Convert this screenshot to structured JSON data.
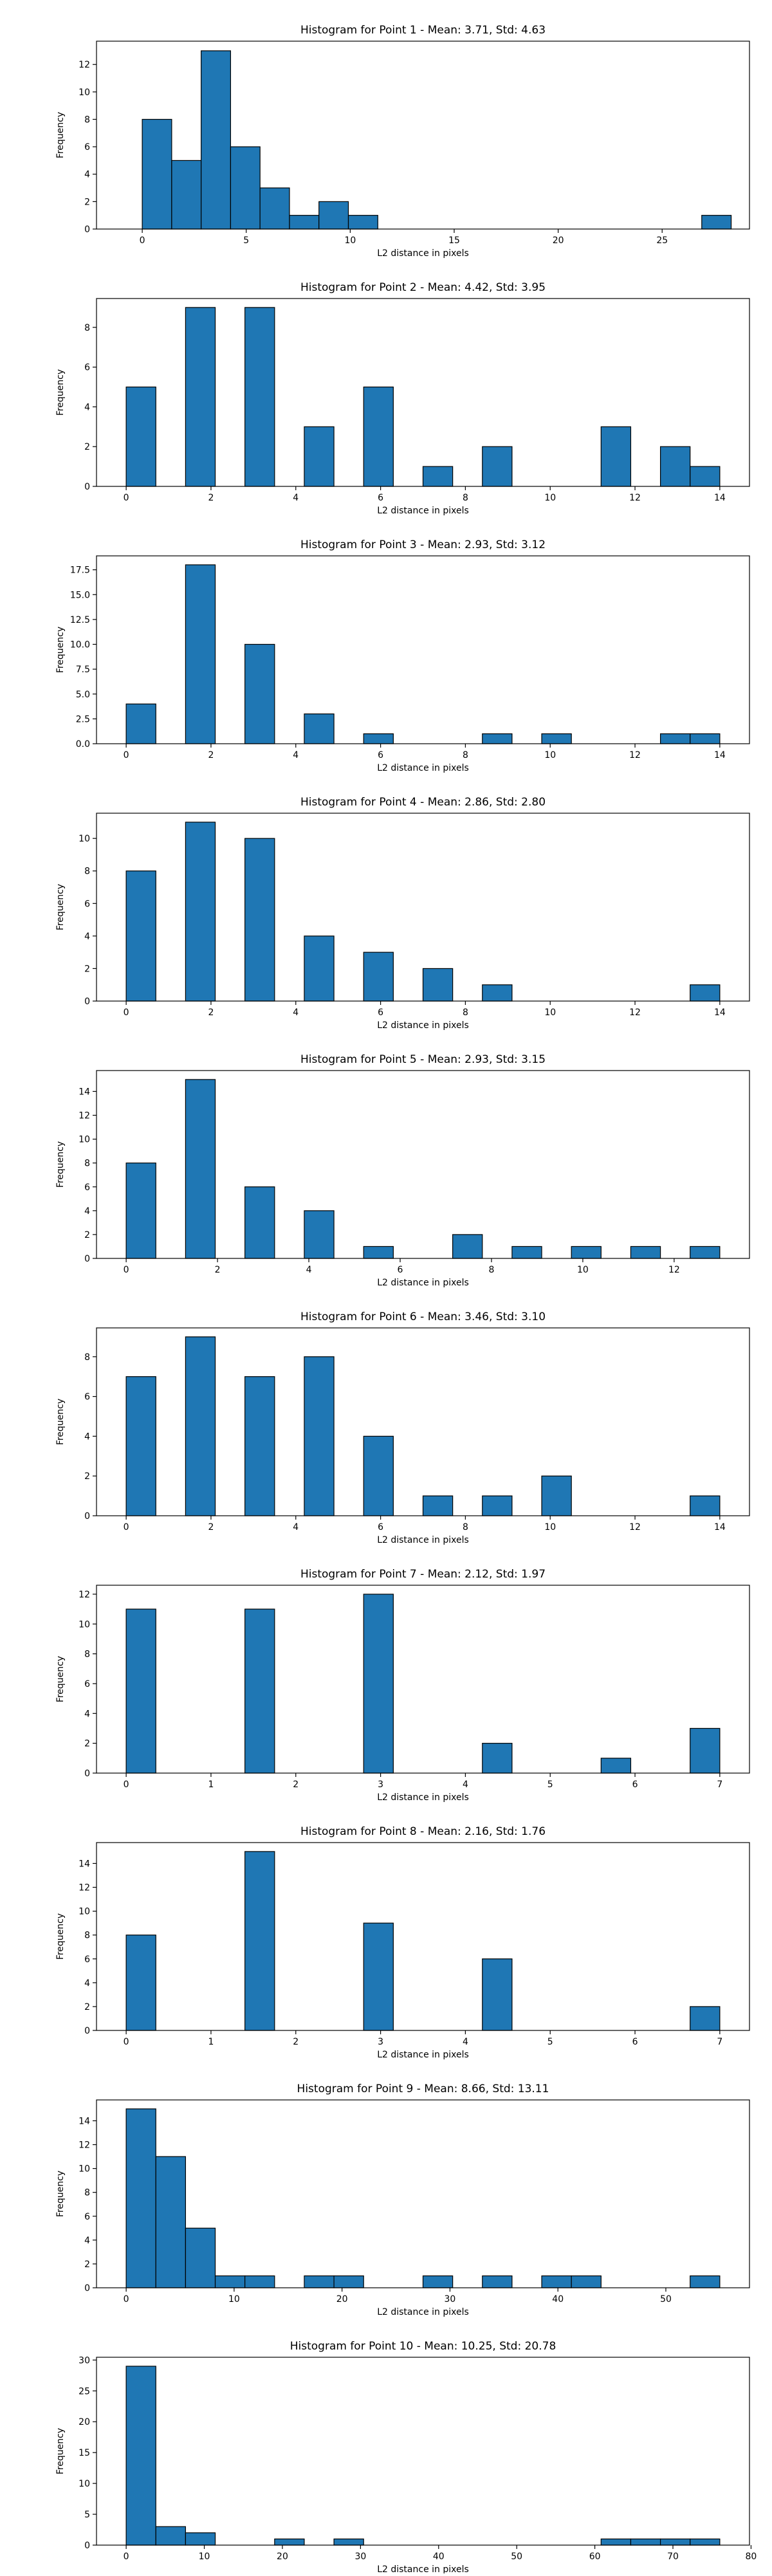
{
  "chart_data": [
    {
      "type": "bar",
      "title": "Histogram for Point 1 - Mean: 3.71, Std: 4.63",
      "xlabel": "L2 distance in pixels",
      "ylabel": "Frequency",
      "xlim": [
        -2.2,
        29.2
      ],
      "ylim": [
        0,
        13.7
      ],
      "xticks": [
        0,
        5,
        10,
        15,
        20,
        25
      ],
      "yticks": [
        0,
        2,
        4,
        6,
        8,
        10,
        12
      ],
      "bin_edges": [
        0,
        1.416,
        2.832,
        4.248,
        5.664,
        7.08,
        8.496,
        9.912,
        11.328,
        12.744,
        14.16,
        15.576,
        16.992,
        18.408,
        19.824,
        21.24,
        22.656,
        24.072,
        25.488,
        26.904,
        28.32
      ],
      "values": [
        8,
        5,
        13,
        6,
        3,
        1,
        2,
        1,
        0,
        0,
        0,
        0,
        0,
        0,
        0,
        0,
        0,
        0,
        0,
        1
      ],
      "color": "#1f77b4"
    },
    {
      "type": "bar",
      "title": "Histogram for Point 2 - Mean: 4.42, Std: 3.95",
      "xlabel": "L2 distance in pixels",
      "ylabel": "Frequency",
      "xlim": [
        -0.7,
        14.7
      ],
      "ylim": [
        0,
        9.45
      ],
      "xticks": [
        0,
        2,
        4,
        6,
        8,
        10,
        12,
        14
      ],
      "yticks": [
        0,
        2,
        4,
        6,
        8
      ],
      "bin_edges": [
        0,
        0.7,
        1.4,
        2.1,
        2.8,
        3.5,
        4.2,
        4.9,
        5.6,
        6.3,
        7.0,
        7.7,
        8.4,
        9.1,
        9.8,
        10.5,
        11.2,
        11.9,
        12.6,
        13.3,
        14.0
      ],
      "values": [
        5,
        0,
        9,
        0,
        9,
        0,
        3,
        0,
        5,
        0,
        1,
        0,
        2,
        0,
        0,
        0,
        3,
        0,
        2,
        1
      ],
      "color": "#1f77b4"
    },
    {
      "type": "bar",
      "title": "Histogram for Point 3 - Mean: 2.93, Std: 3.12",
      "xlabel": "L2 distance in pixels",
      "ylabel": "Frequency",
      "xlim": [
        -0.7,
        14.7
      ],
      "ylim": [
        0,
        18.9
      ],
      "xticks": [
        0,
        2,
        4,
        6,
        8,
        10,
        12,
        14
      ],
      "yticks": [
        0.0,
        2.5,
        5.0,
        7.5,
        10.0,
        12.5,
        15.0,
        17.5
      ],
      "ytick_labels": [
        "0.0",
        "2.5",
        "5.0",
        "7.5",
        "10.0",
        "12.5",
        "15.0",
        "17.5"
      ],
      "bin_edges": [
        0,
        0.7,
        1.4,
        2.1,
        2.8,
        3.5,
        4.2,
        4.9,
        5.6,
        6.3,
        7.0,
        7.7,
        8.4,
        9.1,
        9.8,
        10.5,
        11.2,
        11.9,
        12.6,
        13.3,
        14.0
      ],
      "values": [
        4,
        0,
        18,
        0,
        10,
        0,
        3,
        0,
        1,
        0,
        0,
        0,
        1,
        0,
        1,
        0,
        0,
        0,
        1,
        1
      ],
      "color": "#1f77b4"
    },
    {
      "type": "bar",
      "title": "Histogram for Point 4 - Mean: 2.86, Std: 2.80",
      "xlabel": "L2 distance in pixels",
      "ylabel": "Frequency",
      "xlim": [
        -0.7,
        14.7
      ],
      "ylim": [
        0,
        11.55
      ],
      "xticks": [
        0,
        2,
        4,
        6,
        8,
        10,
        12,
        14
      ],
      "yticks": [
        0,
        2,
        4,
        6,
        8,
        10
      ],
      "bin_edges": [
        0,
        0.7,
        1.4,
        2.1,
        2.8,
        3.5,
        4.2,
        4.9,
        5.6,
        6.3,
        7.0,
        7.7,
        8.4,
        9.1,
        9.8,
        10.5,
        11.2,
        11.9,
        12.6,
        13.3,
        14.0
      ],
      "values": [
        8,
        0,
        11,
        0,
        10,
        0,
        4,
        0,
        3,
        0,
        2,
        0,
        1,
        0,
        0,
        0,
        0,
        0,
        0,
        1
      ],
      "color": "#1f77b4"
    },
    {
      "type": "bar",
      "title": "Histogram for Point 5 - Mean: 2.93, Std: 3.15",
      "xlabel": "L2 distance in pixels",
      "ylabel": "Frequency",
      "xlim": [
        -0.65,
        13.65
      ],
      "ylim": [
        0,
        15.75
      ],
      "xticks": [
        0,
        2,
        4,
        6,
        8,
        10,
        12
      ],
      "yticks": [
        0,
        2,
        4,
        6,
        8,
        10,
        12,
        14
      ],
      "bin_edges": [
        0,
        0.65,
        1.3,
        1.95,
        2.6,
        3.25,
        3.9,
        4.55,
        5.2,
        5.85,
        6.5,
        7.15,
        7.8,
        8.45,
        9.1,
        9.75,
        10.4,
        11.05,
        11.7,
        12.35,
        13.0
      ],
      "values": [
        8,
        0,
        15,
        0,
        6,
        0,
        4,
        0,
        1,
        0,
        0,
        2,
        0,
        1,
        0,
        1,
        0,
        1,
        0,
        1
      ],
      "color": "#1f77b4"
    },
    {
      "type": "bar",
      "title": "Histogram for Point 6 - Mean: 3.46, Std: 3.10",
      "xlabel": "L2 distance in pixels",
      "ylabel": "Frequency",
      "xlim": [
        -0.7,
        14.7
      ],
      "ylim": [
        0,
        9.45
      ],
      "xticks": [
        0,
        2,
        4,
        6,
        8,
        10,
        12,
        14
      ],
      "yticks": [
        0,
        2,
        4,
        6,
        8
      ],
      "bin_edges": [
        0,
        0.7,
        1.4,
        2.1,
        2.8,
        3.5,
        4.2,
        4.9,
        5.6,
        6.3,
        7.0,
        7.7,
        8.4,
        9.1,
        9.8,
        10.5,
        11.2,
        11.9,
        12.6,
        13.3,
        14.0
      ],
      "values": [
        7,
        0,
        9,
        0,
        7,
        0,
        8,
        0,
        4,
        0,
        1,
        0,
        1,
        0,
        2,
        0,
        0,
        0,
        0,
        1
      ],
      "color": "#1f77b4"
    },
    {
      "type": "bar",
      "title": "Histogram for Point 7 - Mean: 2.12, Std: 1.97",
      "xlabel": "L2 distance in pixels",
      "ylabel": "Frequency",
      "xlim": [
        -0.35,
        7.35
      ],
      "ylim": [
        0,
        12.6
      ],
      "xticks": [
        0,
        1,
        2,
        3,
        4,
        5,
        6,
        7
      ],
      "yticks": [
        0,
        2,
        4,
        6,
        8,
        10,
        12
      ],
      "bin_edges": [
        0,
        0.35,
        0.7,
        1.05,
        1.4,
        1.75,
        2.1,
        2.45,
        2.8,
        3.15,
        3.5,
        3.85,
        4.2,
        4.55,
        4.9,
        5.25,
        5.6,
        5.95,
        6.3,
        6.65,
        7.0
      ],
      "values": [
        11,
        0,
        0,
        0,
        11,
        0,
        0,
        0,
        12,
        0,
        0,
        0,
        2,
        0,
        0,
        0,
        1,
        0,
        0,
        3
      ],
      "color": "#1f77b4"
    },
    {
      "type": "bar",
      "title": "Histogram for Point 8 - Mean: 2.16, Std: 1.76",
      "xlabel": "L2 distance in pixels",
      "ylabel": "Frequency",
      "xlim": [
        -0.35,
        7.35
      ],
      "ylim": [
        0,
        15.75
      ],
      "xticks": [
        0,
        1,
        2,
        3,
        4,
        5,
        6,
        7
      ],
      "yticks": [
        0,
        2,
        4,
        6,
        8,
        10,
        12,
        14
      ],
      "bin_edges": [
        0,
        0.35,
        0.7,
        1.05,
        1.4,
        1.75,
        2.1,
        2.45,
        2.8,
        3.15,
        3.5,
        3.85,
        4.2,
        4.55,
        4.9,
        5.25,
        5.6,
        5.95,
        6.3,
        6.65,
        7.0
      ],
      "values": [
        8,
        0,
        0,
        0,
        15,
        0,
        0,
        0,
        9,
        0,
        0,
        0,
        6,
        0,
        0,
        0,
        0,
        0,
        0,
        2
      ],
      "color": "#1f77b4"
    },
    {
      "type": "bar",
      "title": "Histogram for Point 9 - Mean: 8.66, Std: 13.11",
      "xlabel": "L2 distance in pixels",
      "ylabel": "Frequency",
      "xlim": [
        -2.75,
        57.75
      ],
      "ylim": [
        0,
        15.75
      ],
      "xticks": [
        0,
        10,
        20,
        30,
        40,
        50
      ],
      "yticks": [
        0,
        2,
        4,
        6,
        8,
        10,
        12,
        14
      ],
      "bin_edges": [
        0,
        2.75,
        5.5,
        8.25,
        11.0,
        13.75,
        16.5,
        19.25,
        22.0,
        24.75,
        27.5,
        30.25,
        33.0,
        35.75,
        38.5,
        41.25,
        44.0,
        46.75,
        49.5,
        52.25,
        55.0
      ],
      "values": [
        15,
        11,
        5,
        1,
        1,
        0,
        1,
        1,
        0,
        0,
        1,
        0,
        1,
        0,
        1,
        1,
        0,
        0,
        0,
        1
      ],
      "color": "#1f77b4"
    },
    {
      "type": "bar",
      "title": "Histogram for Point 10 - Mean: 10.25, Std: 20.78",
      "xlabel": "L2 distance in pixels",
      "ylabel": "Frequency",
      "xlim": [
        -3.8,
        79.8
      ],
      "ylim": [
        0,
        30.45
      ],
      "xticks": [
        0,
        10,
        20,
        30,
        40,
        50,
        60,
        70,
        80
      ],
      "yticks": [
        0,
        5,
        10,
        15,
        20,
        25,
        30
      ],
      "bin_edges": [
        0,
        3.8,
        7.6,
        11.4,
        15.2,
        19.0,
        22.8,
        26.6,
        30.4,
        34.2,
        38.0,
        41.8,
        45.6,
        49.4,
        53.2,
        57.0,
        60.8,
        64.6,
        68.4,
        72.2,
        76.0
      ],
      "values": [
        29,
        3,
        2,
        0,
        0,
        1,
        0,
        1,
        0,
        0,
        0,
        0,
        0,
        0,
        0,
        0,
        1,
        1,
        1,
        1
      ],
      "color": "#1f77b4"
    }
  ]
}
